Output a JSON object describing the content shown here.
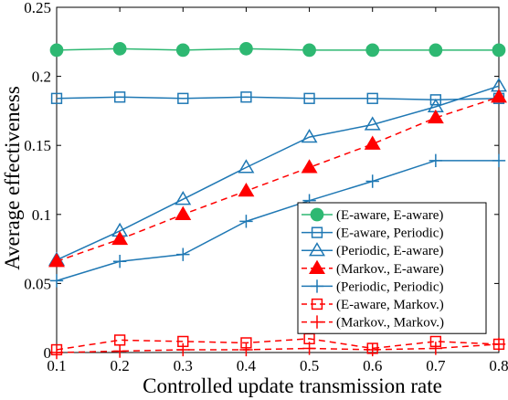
{
  "chart_data": {
    "type": "line",
    "xlabel": "Controlled update transmission rate",
    "ylabel": "Average effectiveness",
    "xlim": [
      0.1,
      0.8
    ],
    "ylim": [
      0,
      0.25
    ],
    "x": [
      0.1,
      0.2,
      0.3,
      0.4,
      0.5,
      0.6,
      0.7,
      0.8
    ],
    "xticks": [
      "0.1",
      "0.2",
      "0.3",
      "0.4",
      "0.5",
      "0.6",
      "0.7",
      "0.8"
    ],
    "yticks": [
      "0",
      "0.05",
      "0.1",
      "0.15",
      "0.2",
      "0.25"
    ],
    "grid": false,
    "legend_position": "lower-right",
    "series": [
      {
        "name": "(E-aware, E-aware)",
        "color": "#2eb872",
        "marker": "circle-filled",
        "dash": "solid",
        "values": [
          0.219,
          0.22,
          0.219,
          0.22,
          0.219,
          0.219,
          0.219,
          0.219
        ]
      },
      {
        "name": "(E-aware, Periodic)",
        "color": "#1f78b4",
        "marker": "square-open",
        "dash": "solid",
        "values": [
          0.184,
          0.185,
          0.184,
          0.185,
          0.184,
          0.184,
          0.183,
          0.184
        ]
      },
      {
        "name": "(Periodic, E-aware)",
        "color": "#1f78b4",
        "marker": "triangle-open",
        "dash": "solid",
        "values": [
          0.067,
          0.088,
          0.111,
          0.134,
          0.156,
          0.165,
          0.178,
          0.193
        ]
      },
      {
        "name": "(Markov., E-aware)",
        "color": "#ff0000",
        "marker": "triangle-filled",
        "dash": "dashed",
        "values": [
          0.066,
          0.082,
          0.1,
          0.117,
          0.134,
          0.151,
          0.17,
          0.185
        ]
      },
      {
        "name": "(Periodic, Periodic)",
        "color": "#1f78b4",
        "marker": "plus",
        "dash": "solid",
        "values": [
          0.052,
          0.066,
          0.071,
          0.095,
          0.11,
          0.124,
          0.139,
          0.139
        ]
      },
      {
        "name": "(E-aware, Markov.)",
        "color": "#ff0000",
        "marker": "square-open",
        "dash": "dashed",
        "values": [
          0.002,
          0.009,
          0.008,
          0.007,
          0.01,
          0.003,
          0.008,
          0.006
        ]
      },
      {
        "name": "(Markov., Markov.)",
        "color": "#ff0000",
        "marker": "plus",
        "dash": "dashed",
        "values": [
          0.0,
          0.001,
          0.002,
          0.002,
          0.003,
          0.002,
          0.003,
          0.006
        ]
      }
    ]
  }
}
